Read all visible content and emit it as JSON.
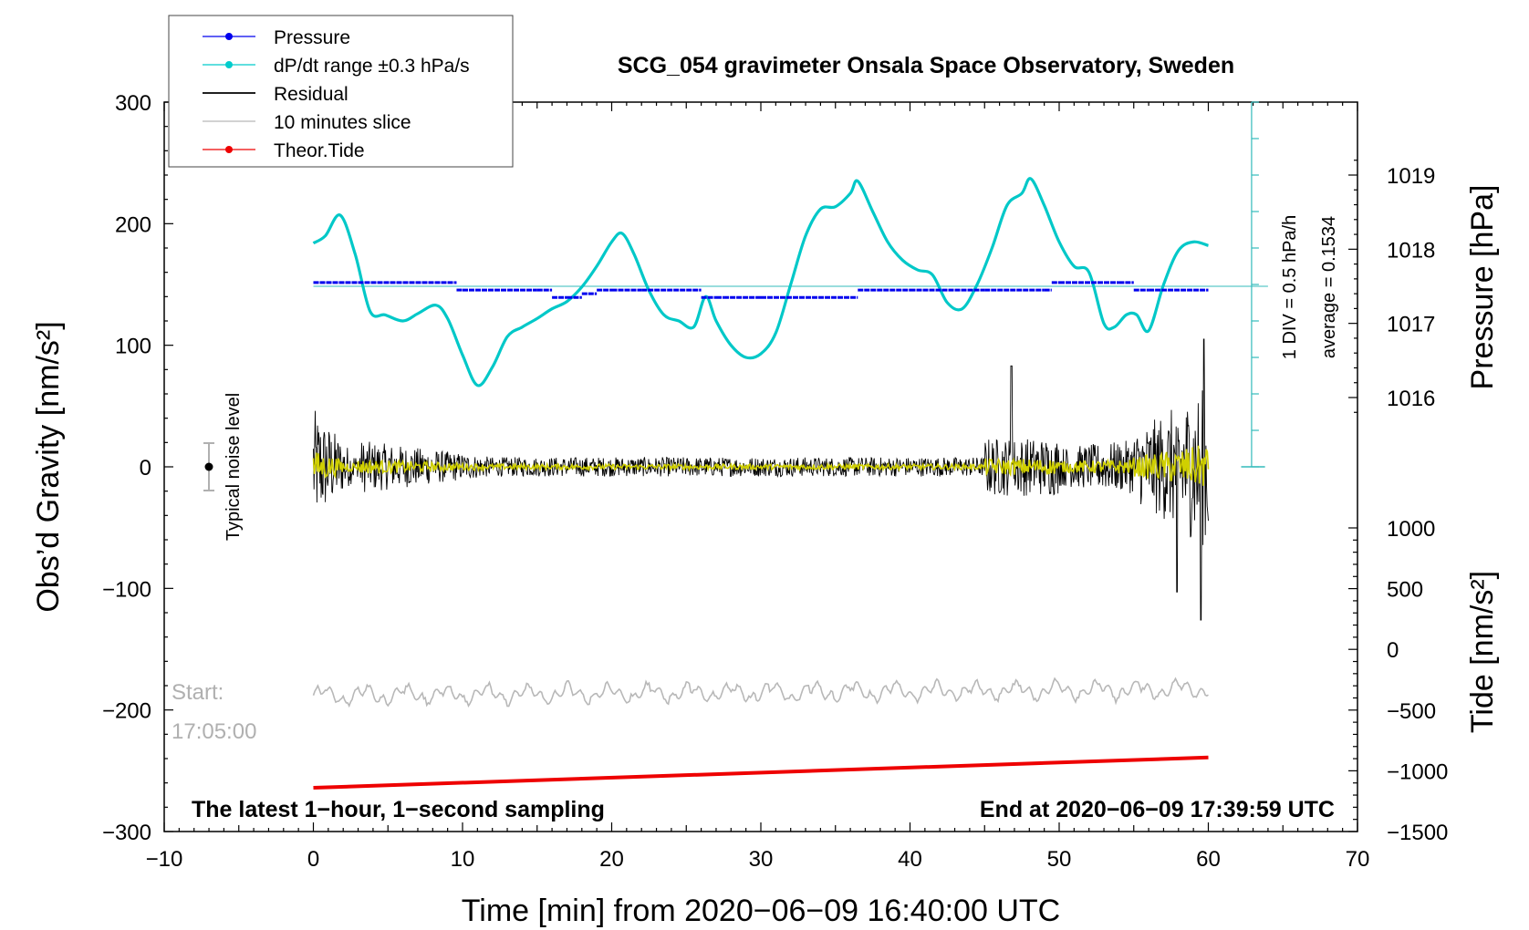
{
  "chart_data": {
    "type": "line",
    "title": "SCG_054 gravimeter Onsala Space Observatory, Sweden",
    "xlabel": "Time [min] from 2020−06−09 16:40:00 UTC",
    "ylabel_left": "Obs’d Gravity [nm/s²]",
    "ylabel_pressure": "Pressure [hPa]",
    "ylabel_tide": "Tide [nm/s²]",
    "xlim": [
      -10,
      70
    ],
    "ylim": [
      -300,
      300
    ],
    "pressure_ylim": [
      1016,
      1019
    ],
    "tide_ylim": [
      -1500,
      1000
    ],
    "x_ticks": [
      "−10",
      "0",
      "10",
      "20",
      "30",
      "40",
      "50",
      "60",
      "70"
    ],
    "y_ticks": [
      "300",
      "200",
      "100",
      "0",
      "−100",
      "−200",
      "−300"
    ],
    "pressure_ticks": [
      "1019",
      "1018",
      "1017",
      "1016"
    ],
    "tide_ticks": [
      "1000",
      "500",
      "0",
      "−500",
      "−1000",
      "−1500"
    ],
    "legend": [
      {
        "label": "Pressure",
        "color": "#0000ee",
        "marker": true
      },
      {
        "label": "dP/dt range ±0.3 hPa/s",
        "color": "#00cccc",
        "marker": true
      },
      {
        "label": "Residual",
        "color": "#000000",
        "marker": false
      },
      {
        "label": "10 minutes slice",
        "color": "#b8b8b8",
        "marker": false
      },
      {
        "label": "Theor.Tide",
        "color": "#ee0000",
        "marker": true
      }
    ],
    "annotations": {
      "noise_label": "Typical noise level",
      "start_label": "Start:",
      "start_time": "17:05:00",
      "bottom_left": "The latest 1−hour, 1−second sampling",
      "bottom_right": "End at 2020−06−09 17:39:59 UTC",
      "scale_div": "1 DIV = 0.5 hPa/h",
      "scale_avg": "average = 0.1534"
    },
    "series": {
      "pressure_hpa": {
        "x": [
          0,
          9.5,
          9.6,
          10,
          13,
          15,
          16,
          17,
          18,
          19,
          20,
          22,
          25,
          26,
          27,
          27.5,
          30,
          33,
          36,
          36.5,
          40,
          45,
          48,
          49,
          49.5,
          50,
          54,
          55,
          56,
          60
        ],
        "y": [
          1017.55,
          1017.55,
          1017.45,
          1017.45,
          1017.45,
          1017.45,
          1017.35,
          1017.35,
          1017.4,
          1017.45,
          1017.45,
          1017.45,
          1017.45,
          1017.35,
          1017.35,
          1017.35,
          1017.35,
          1017.35,
          1017.35,
          1017.45,
          1017.45,
          1017.45,
          1017.45,
          1017.45,
          1017.55,
          1017.55,
          1017.55,
          1017.45,
          1017.45,
          1017.55
        ]
      },
      "dpdt_gravity_units": {
        "x": [
          0,
          0.8,
          1.8,
          2.8,
          3.8,
          4.8,
          6,
          7,
          8.2,
          9,
          10,
          11,
          12,
          13,
          14,
          15,
          16,
          17,
          18,
          19,
          20,
          20.7,
          21.5,
          22.5,
          23.5,
          24.5,
          25.5,
          26.3,
          27,
          28,
          29,
          30,
          31,
          32,
          33,
          34,
          35,
          36,
          36.5,
          37.5,
          38.5,
          39.5,
          40.5,
          41.5,
          42.5,
          43.5,
          44.5,
          45.5,
          46.5,
          47.5,
          48.1,
          49,
          50,
          51,
          52,
          53,
          53.7,
          54.5,
          55.2,
          56,
          57,
          58,
          59,
          60
        ],
        "y": [
          184,
          190,
          207,
          175,
          128,
          125,
          120,
          126,
          133,
          122,
          92,
          67,
          82,
          107,
          115,
          122,
          130,
          136,
          148,
          165,
          185,
          192,
          175,
          145,
          125,
          120,
          115,
          140,
          120,
          100,
          90,
          93,
          110,
          150,
          190,
          212,
          214,
          225,
          235,
          210,
          185,
          170,
          162,
          158,
          135,
          130,
          150,
          180,
          215,
          225,
          237,
          215,
          185,
          165,
          160,
          118,
          115,
          125,
          125,
          112,
          150,
          178,
          185,
          182
        ]
      },
      "tide_nms2": {
        "x": [
          0,
          60
        ],
        "y": [
          -1140,
          -890
        ]
      }
    }
  }
}
